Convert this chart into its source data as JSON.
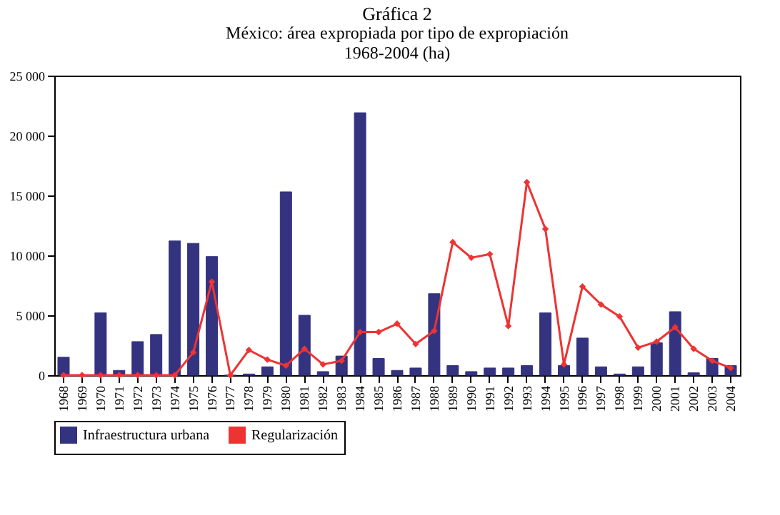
{
  "chart_data": {
    "type": "bar",
    "title": "Gráfica 2",
    "subtitle": [
      "México: área expropiada por tipo de expropiación",
      "1968-2004 (ha)"
    ],
    "categories": [
      "1968",
      "1969",
      "1970",
      "1971",
      "1972",
      "1973",
      "1974",
      "1975",
      "1976",
      "1977",
      "1978",
      "1979",
      "1980",
      "1981",
      "1982",
      "1983",
      "1984",
      "1985",
      "1986",
      "1987",
      "1988",
      "1989",
      "1990",
      "1991",
      "1992",
      "1993",
      "1994",
      "1995",
      "1996",
      "1997",
      "1998",
      "1999",
      "2000",
      "2001",
      "2002",
      "2003",
      "2004"
    ],
    "series": [
      {
        "name": "Infraestructura urbana",
        "color": "#333380",
        "values": [
          1500,
          0,
          5200,
          400,
          2800,
          3400,
          11200,
          11000,
          9900,
          0,
          100,
          700,
          15300,
          5000,
          300,
          1600,
          21900,
          1400,
          400,
          600,
          6800,
          800,
          300,
          600,
          600,
          800,
          5200,
          800,
          3100,
          700,
          100,
          700,
          2700,
          5300,
          200,
          1400,
          800
        ]
      },
      {
        "name": "Regularización",
        "type": "line",
        "color": "#ee3333",
        "marker": "diamond",
        "line_style": "solid",
        "values": [
          0,
          0,
          0,
          0,
          0,
          0,
          0,
          1900,
          7800,
          0,
          2100,
          1300,
          800,
          2200,
          900,
          1200,
          3600,
          3600,
          4300,
          2600,
          3700,
          11100,
          9800,
          10100,
          4100,
          16100,
          12200,
          900,
          7400,
          5900,
          4900,
          2300,
          2800,
          4000,
          2200,
          1200,
          600
        ]
      }
    ],
    "ylim": [
      0,
      25000
    ],
    "yticks": [
      {
        "value": 0,
        "label": "0"
      },
      {
        "value": 5000,
        "label": "5 000"
      },
      {
        "value": 10000,
        "label": "10 000"
      },
      {
        "value": 15000,
        "label": "15 000"
      },
      {
        "value": 20000,
        "label": "20 000"
      },
      {
        "value": 25000,
        "label": "25 000"
      }
    ],
    "grid": false,
    "legend": "bottom"
  }
}
